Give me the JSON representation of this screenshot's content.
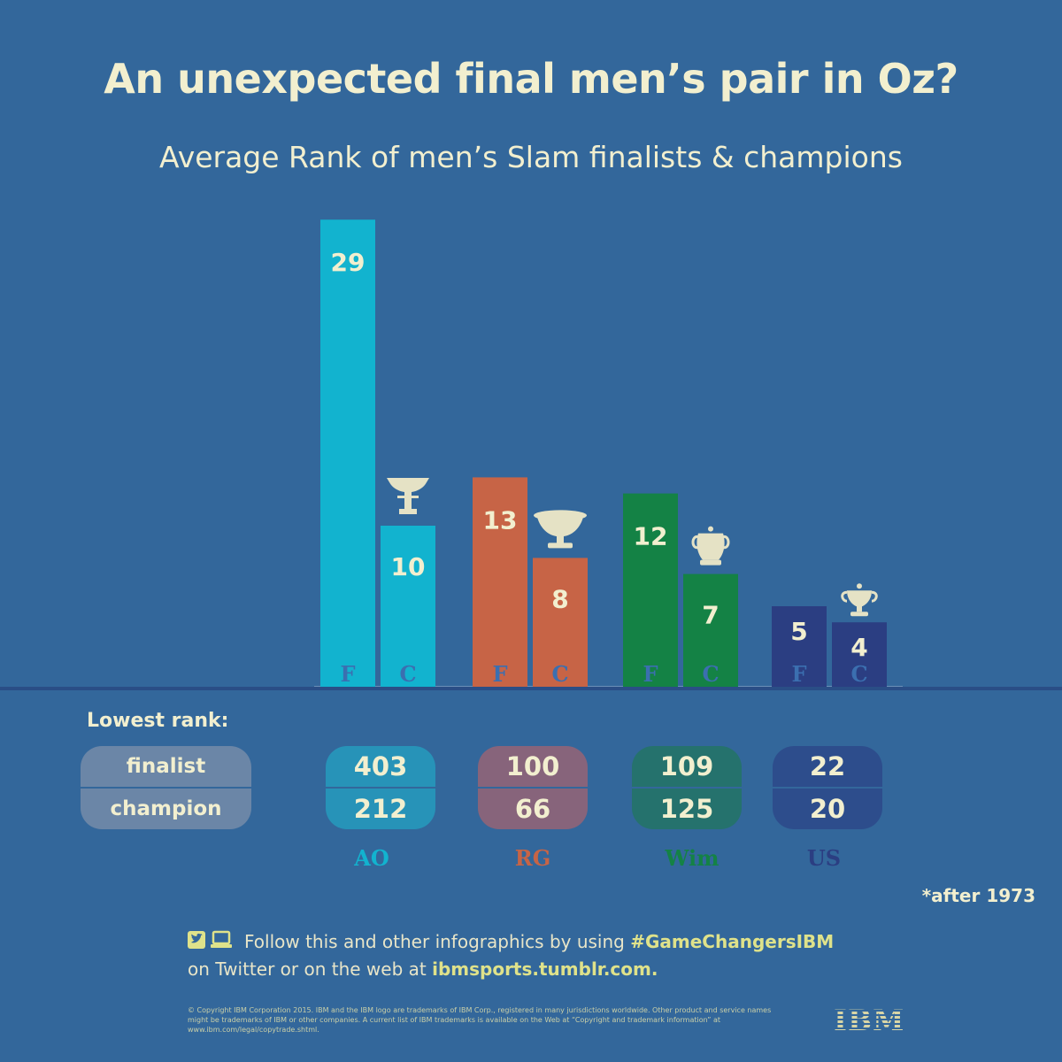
{
  "header": {
    "title": "An unexpected final men’s pair in Oz?",
    "subtitle": "Average Rank of men’s Slam finalists & champions"
  },
  "colors": {
    "background": "#33679b",
    "text": "#f2efcf",
    "AO": "#12b3cf",
    "RG": "#c76446",
    "Wim": "#148245",
    "US": "#2b3e82",
    "letter_blue": "#3b6fb0",
    "trophy": "#e5e2c5"
  },
  "chart_data": {
    "type": "bar",
    "title": "Average Rank of men’s Slam finalists & champions",
    "categories": [
      "AO",
      "RG",
      "Wim",
      "US"
    ],
    "series": [
      {
        "name": "F",
        "values": [
          29,
          13,
          12,
          5
        ]
      },
      {
        "name": "C",
        "values": [
          10,
          8,
          7,
          4
        ]
      }
    ],
    "bar_letters": {
      "finalist": "F",
      "champion": "C"
    }
  },
  "lowest_rank": {
    "label": "Lowest rank:",
    "row_labels": [
      "finalist",
      "champion"
    ],
    "slams": [
      {
        "name": "AO",
        "finalist": "403",
        "champion": "212"
      },
      {
        "name": "RG",
        "finalist": "100",
        "champion": "66"
      },
      {
        "name": "Wim",
        "finalist": "109",
        "champion": "125"
      },
      {
        "name": "US",
        "finalist": "22",
        "champion": "20"
      }
    ]
  },
  "footnote": "*after 1973",
  "footer": {
    "follow_text_1": "Follow this and other infographics by using ",
    "hashtag": "#GameChangersIBM",
    "follow_text_2": "on Twitter or on the web at ",
    "site": "ibmsports.tumblr.com.",
    "copyright": "© Copyright IBM Corporation 2015. IBM and the IBM logo are trademarks of IBM Corp., registered in many jurisdictions worldwide. Other product and service names might be trademarks of IBM or other companies. A current list of IBM trademarks is available on the Web at “Copyright and trademark information” at www.ibm.com/legal/copytrade.shtml.",
    "logo_text": "IBM"
  }
}
